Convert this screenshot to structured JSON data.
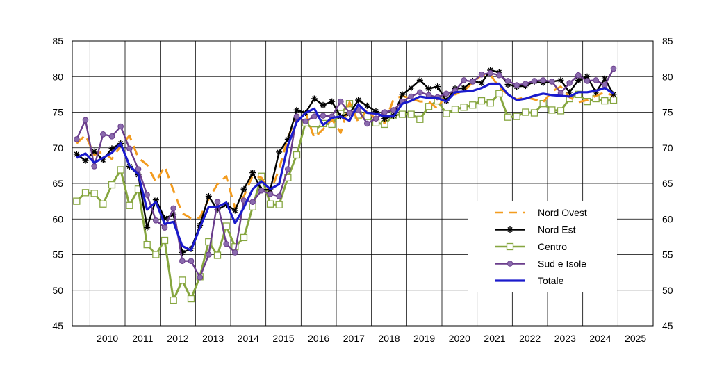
{
  "chart_data": {
    "type": "line",
    "title": "",
    "xlabel": "",
    "ylabel": "",
    "ylim": [
      45,
      85
    ],
    "y_ticks": [
      45,
      50,
      55,
      60,
      65,
      70,
      75,
      80,
      85
    ],
    "y_tick_labels": [
      "45",
      "50",
      "55",
      "60",
      "65",
      "70",
      "75",
      "80",
      "85"
    ],
    "y_axis_sides": "left-and-right",
    "grid": true,
    "legend_position": "lower-right",
    "x_start": "2009-Q3",
    "x_period": "quarter",
    "years": [
      "2010",
      "2011",
      "2012",
      "2013",
      "2014",
      "2015",
      "2016",
      "2017",
      "2018",
      "2019",
      "2020",
      "2021",
      "2022",
      "2023",
      "2024",
      "2025"
    ],
    "series": [
      {
        "name": "Nord Ovest",
        "color": "#f39c1f",
        "style": "dashed",
        "marker": "none",
        "values": [
          70.6,
          71.8,
          69.0,
          69.5,
          68.4,
          70.3,
          71.7,
          68.6,
          67.6,
          65.2,
          67.4,
          64.0,
          60.8,
          60.1,
          60.2,
          62.8,
          64.9,
          66.0,
          61.5,
          63.2,
          66.1,
          65.8,
          63.7,
          67.0,
          71.4,
          74.5,
          75.0,
          71.4,
          72.6,
          74.0,
          72.1,
          76.4,
          73.6,
          75.4,
          73.9,
          73.5,
          76.8,
          77.3,
          76.9,
          76.5,
          76.5,
          75.5,
          77.6,
          77.5,
          78.0,
          79.2,
          80.2,
          80.3,
          78.5,
          77.5,
          76.8,
          77.1,
          76.8,
          76.4,
          77.9,
          78.6,
          77.1,
          76.4,
          76.7,
          77.3,
          77.8,
          77.3
        ]
      },
      {
        "name": "Nord Est",
        "color": "#000000",
        "style": "solid",
        "marker": "star",
        "values": [
          69.1,
          68.2,
          69.5,
          68.3,
          69.9,
          70.6,
          67.4,
          66.2,
          58.8,
          62.7,
          60.1,
          60.6,
          55.3,
          55.8,
          59.1,
          63.2,
          61.3,
          62.0,
          61.2,
          64.2,
          66.5,
          64.1,
          64.1,
          69.4,
          71.2,
          75.3,
          74.9,
          76.9,
          76.0,
          76.5,
          74.4,
          74.8,
          76.7,
          75.9,
          75.1,
          74.1,
          74.5,
          77.5,
          78.4,
          79.5,
          78.3,
          78.6,
          76.6,
          78.3,
          78.4,
          79.4,
          79.1,
          80.9,
          80.6,
          78.9,
          78.6,
          78.7,
          79.3,
          79.1,
          79.3,
          79.5,
          77.8,
          79.5,
          80.0,
          77.8,
          79.7,
          77.5
        ]
      },
      {
        "name": "Centro",
        "color": "#86a63f",
        "style": "solid",
        "marker": "square",
        "values": [
          62.5,
          63.7,
          63.6,
          62.1,
          64.8,
          66.9,
          61.9,
          64.2,
          56.4,
          55.0,
          57.0,
          48.6,
          51.4,
          48.8,
          51.9,
          56.8,
          54.9,
          59.0,
          56.1,
          57.4,
          61.7,
          66.0,
          62.1,
          62.0,
          65.8,
          69.0,
          73.5,
          72.5,
          73.4,
          73.3,
          74.8,
          76.2,
          74.6,
          74.4,
          73.5,
          73.3,
          74.6,
          74.7,
          74.7,
          74.0,
          75.8,
          76.6,
          74.8,
          75.4,
          75.7,
          76.0,
          76.6,
          76.3,
          77.6,
          74.3,
          74.4,
          75.0,
          74.9,
          76.2,
          75.3,
          75.2,
          76.9,
          77.5,
          76.5,
          76.9,
          76.6,
          76.7
        ]
      },
      {
        "name": "Sud e Isole",
        "color": "#6a3d8c",
        "style": "solid",
        "marker": "circle",
        "values": [
          71.2,
          73.9,
          67.4,
          71.9,
          71.6,
          73.0,
          69.9,
          67.0,
          63.4,
          59.8,
          58.8,
          61.5,
          54.1,
          54.1,
          51.8,
          55.0,
          62.4,
          56.5,
          55.3,
          62.6,
          62.4,
          64.0,
          63.5,
          63.2,
          67.0,
          74.4,
          73.7,
          74.4,
          74.5,
          74.4,
          76.5,
          74.9,
          75.3,
          73.4,
          74.1,
          75.0,
          75.3,
          76.5,
          77.2,
          77.8,
          77.4,
          77.1,
          77.6,
          78.0,
          79.5,
          79.3,
          80.3,
          80.5,
          80.2,
          79.4,
          78.8,
          79.0,
          79.4,
          79.5,
          79.3,
          77.7,
          79.1,
          80.2,
          79.4,
          79.5,
          78.8,
          81.1
        ]
      },
      {
        "name": "Totale",
        "color": "#1a1acc",
        "style": "solid",
        "marker": "none",
        "values": [
          68.6,
          69.2,
          67.9,
          68.6,
          69.3,
          70.6,
          67.5,
          66.3,
          61.3,
          62.4,
          59.3,
          59.6,
          56.2,
          55.6,
          58.8,
          61.7,
          61.7,
          62.3,
          59.4,
          61.6,
          64.2,
          65.3,
          64.2,
          64.9,
          70.3,
          73.6,
          74.9,
          75.5,
          73.2,
          74.2,
          74.4,
          73.8,
          76.1,
          74.9,
          74.8,
          74.4,
          74.4,
          76.2,
          76.6,
          77.2,
          77.0,
          77.0,
          76.5,
          77.8,
          77.9,
          78.0,
          78.4,
          79.0,
          79.0,
          77.5,
          76.7,
          76.9,
          77.3,
          77.6,
          77.4,
          77.3,
          77.2,
          77.8,
          77.8,
          78.0,
          78.4,
          77.6
        ]
      }
    ]
  }
}
